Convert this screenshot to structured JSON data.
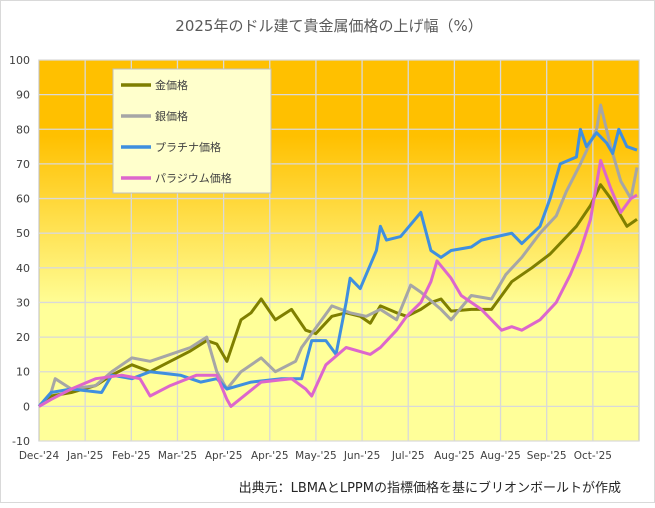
{
  "chart_data": {
    "type": "line",
    "title": "2025年のドル建て貴金属価格の上げ幅（%）",
    "xlabel": "",
    "ylabel": "",
    "ylim": [
      -10,
      100
    ],
    "yticks": [
      -10,
      0,
      10,
      20,
      30,
      40,
      50,
      60,
      70,
      80,
      90,
      100
    ],
    "xlim": [
      "2024-12-31",
      "2025-10-24"
    ],
    "xtick_labels": [
      "Dec-'24",
      "Jan-'25",
      "Feb-'25",
      "Mar-'25",
      "Apr-'25",
      "Apr-'25",
      "May-'25",
      "Jun-'25",
      "Jul-'25",
      "Aug-'25",
      "Aug-'25",
      "Sep-'25",
      "Oct-'25"
    ],
    "grid": true,
    "legend_placement": "top-left",
    "background": {
      "top": "#ffc000",
      "bottom": "#ffff99"
    },
    "series": [
      {
        "name": "金価格",
        "color": "#7f7f00",
        "points": [
          [
            "2024-12-31",
            0
          ],
          [
            "2025-01-06",
            3
          ],
          [
            "2025-01-16",
            4
          ],
          [
            "2025-01-28",
            6
          ],
          [
            "2025-02-05",
            9
          ],
          [
            "2025-02-15",
            12
          ],
          [
            "2025-02-24",
            10
          ],
          [
            "2025-03-06",
            13
          ],
          [
            "2025-03-16",
            16
          ],
          [
            "2025-03-24",
            19
          ],
          [
            "2025-03-29",
            18
          ],
          [
            "2025-04-03",
            13
          ],
          [
            "2025-04-10",
            25
          ],
          [
            "2025-04-15",
            27
          ],
          [
            "2025-04-20",
            31
          ],
          [
            "2025-04-27",
            25
          ],
          [
            "2025-05-05",
            28
          ],
          [
            "2025-05-12",
            22
          ],
          [
            "2025-05-17",
            21
          ],
          [
            "2025-05-25",
            26
          ],
          [
            "2025-06-01",
            27
          ],
          [
            "2025-06-08",
            26
          ],
          [
            "2025-06-13",
            24
          ],
          [
            "2025-06-18",
            29
          ],
          [
            "2025-06-26",
            27
          ],
          [
            "2025-07-01",
            26
          ],
          [
            "2025-07-08",
            28
          ],
          [
            "2025-07-13",
            30
          ],
          [
            "2025-07-18",
            31
          ],
          [
            "2025-07-23",
            27.5
          ],
          [
            "2025-08-02",
            28
          ],
          [
            "2025-08-12",
            28
          ],
          [
            "2025-08-22",
            36
          ],
          [
            "2025-09-01",
            40
          ],
          [
            "2025-09-10",
            44
          ],
          [
            "2025-09-23",
            52
          ],
          [
            "2025-09-30",
            58
          ],
          [
            "2025-10-05",
            64
          ],
          [
            "2025-10-10",
            60
          ],
          [
            "2025-10-15",
            55
          ],
          [
            "2025-10-18",
            52
          ],
          [
            "2025-10-23",
            54
          ]
        ]
      },
      {
        "name": "銀価格",
        "color": "#a6a6a6",
        "points": [
          [
            "2024-12-31",
            0
          ],
          [
            "2025-01-06",
            4
          ],
          [
            "2025-01-08",
            8
          ],
          [
            "2025-01-16",
            5
          ],
          [
            "2025-01-28",
            6
          ],
          [
            "2025-02-05",
            10
          ],
          [
            "2025-02-15",
            14
          ],
          [
            "2025-02-24",
            13
          ],
          [
            "2025-03-06",
            15
          ],
          [
            "2025-03-16",
            17
          ],
          [
            "2025-03-24",
            20
          ],
          [
            "2025-03-29",
            10
          ],
          [
            "2025-04-03",
            5
          ],
          [
            "2025-04-10",
            10
          ],
          [
            "2025-04-20",
            14
          ],
          [
            "2025-04-27",
            10
          ],
          [
            "2025-05-07",
            13
          ],
          [
            "2025-05-10",
            17
          ],
          [
            "2025-05-25",
            29
          ],
          [
            "2025-06-03",
            27
          ],
          [
            "2025-06-11",
            26
          ],
          [
            "2025-06-18",
            28
          ],
          [
            "2025-06-26",
            25
          ],
          [
            "2025-07-03",
            35
          ],
          [
            "2025-07-08",
            33
          ],
          [
            "2025-07-18",
            28
          ],
          [
            "2025-07-23",
            25
          ],
          [
            "2025-08-02",
            32
          ],
          [
            "2025-08-12",
            31
          ],
          [
            "2025-08-19",
            38
          ],
          [
            "2025-08-27",
            43
          ],
          [
            "2025-09-05",
            50
          ],
          [
            "2025-09-13",
            55
          ],
          [
            "2025-09-18",
            62
          ],
          [
            "2025-09-25",
            70
          ],
          [
            "2025-10-03",
            80
          ],
          [
            "2025-10-05",
            87
          ],
          [
            "2025-10-10",
            75
          ],
          [
            "2025-10-15",
            65
          ],
          [
            "2025-10-20",
            60
          ],
          [
            "2025-10-23",
            69
          ]
        ]
      },
      {
        "name": "プラチナ価格",
        "color": "#3f8fdf",
        "points": [
          [
            "2024-12-31",
            0
          ],
          [
            "2025-01-06",
            4
          ],
          [
            "2025-01-16",
            5
          ],
          [
            "2025-01-31",
            4
          ],
          [
            "2025-02-05",
            9
          ],
          [
            "2025-02-15",
            8
          ],
          [
            "2025-02-24",
            10
          ],
          [
            "2025-03-11",
            9
          ],
          [
            "2025-03-21",
            7
          ],
          [
            "2025-03-29",
            8
          ],
          [
            "2025-04-03",
            5
          ],
          [
            "2025-04-15",
            7
          ],
          [
            "2025-04-30",
            8
          ],
          [
            "2025-05-10",
            8
          ],
          [
            "2025-05-15",
            19
          ],
          [
            "2025-05-22",
            19
          ],
          [
            "2025-05-27",
            15
          ],
          [
            "2025-06-01",
            30
          ],
          [
            "2025-06-03",
            37
          ],
          [
            "2025-06-08",
            34
          ],
          [
            "2025-06-16",
            45
          ],
          [
            "2025-06-18",
            52
          ],
          [
            "2025-06-21",
            48
          ],
          [
            "2025-06-28",
            49
          ],
          [
            "2025-07-08",
            56
          ],
          [
            "2025-07-13",
            45
          ],
          [
            "2025-07-18",
            43
          ],
          [
            "2025-07-23",
            45
          ],
          [
            "2025-08-02",
            46
          ],
          [
            "2025-08-07",
            48
          ],
          [
            "2025-08-22",
            50
          ],
          [
            "2025-08-27",
            47
          ],
          [
            "2025-09-05",
            52
          ],
          [
            "2025-09-10",
            60
          ],
          [
            "2025-09-15",
            70
          ],
          [
            "2025-09-23",
            72
          ],
          [
            "2025-09-25",
            80
          ],
          [
            "2025-09-28",
            75
          ],
          [
            "2025-10-03",
            79
          ],
          [
            "2025-10-08",
            76
          ],
          [
            "2025-10-11",
            73
          ],
          [
            "2025-10-14",
            80
          ],
          [
            "2025-10-18",
            75
          ],
          [
            "2025-10-23",
            74
          ]
        ]
      },
      {
        "name": "パラジウム価格",
        "color": "#dd66cc",
        "points": [
          [
            "2024-12-31",
            0
          ],
          [
            "2025-01-06",
            2
          ],
          [
            "2025-01-16",
            5
          ],
          [
            "2025-01-28",
            8
          ],
          [
            "2025-02-10",
            9
          ],
          [
            "2025-02-19",
            8
          ],
          [
            "2025-02-24",
            3
          ],
          [
            "2025-03-06",
            6
          ],
          [
            "2025-03-19",
            9
          ],
          [
            "2025-03-29",
            9
          ],
          [
            "2025-04-03",
            2
          ],
          [
            "2025-04-05",
            0
          ],
          [
            "2025-04-20",
            7
          ],
          [
            "2025-05-05",
            8
          ],
          [
            "2025-05-12",
            5
          ],
          [
            "2025-05-15",
            3
          ],
          [
            "2025-05-22",
            12
          ],
          [
            "2025-06-01",
            17
          ],
          [
            "2025-06-13",
            15
          ],
          [
            "2025-06-18",
            17
          ],
          [
            "2025-06-26",
            22
          ],
          [
            "2025-07-01",
            26
          ],
          [
            "2025-07-08",
            30
          ],
          [
            "2025-07-13",
            36
          ],
          [
            "2025-07-16",
            42
          ],
          [
            "2025-07-23",
            37
          ],
          [
            "2025-07-28",
            32
          ],
          [
            "2025-08-07",
            28
          ],
          [
            "2025-08-17",
            22
          ],
          [
            "2025-08-22",
            23
          ],
          [
            "2025-08-27",
            22
          ],
          [
            "2025-09-05",
            25
          ],
          [
            "2025-09-13",
            30
          ],
          [
            "2025-09-20",
            38
          ],
          [
            "2025-09-25",
            45
          ],
          [
            "2025-09-30",
            54
          ],
          [
            "2025-10-05",
            71
          ],
          [
            "2025-10-10",
            63
          ],
          [
            "2025-10-15",
            56
          ],
          [
            "2025-10-20",
            60
          ],
          [
            "2025-10-23",
            61
          ]
        ]
      }
    ],
    "source_note": "出典元：LBMAとLPPMの指標価格を基にブリオンボールトが作成"
  }
}
